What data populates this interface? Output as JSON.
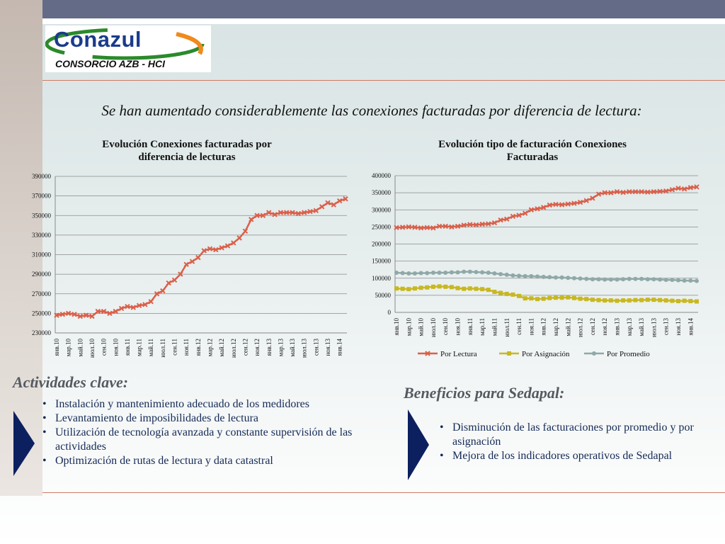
{
  "logo": {
    "name": "Conazul",
    "subtitle": "CONSORCIO AZB - HCI"
  },
  "headline": "Se han aumentado considerablemente las conexiones facturadas por diferencia de lectura:",
  "colors": {
    "top_bar": "#636b87",
    "rule": "#d07a60",
    "lectura": "#d9604a",
    "asignacion": "#c8b820",
    "promedio": "#8fa8a8",
    "list_text": "#142a55",
    "arrow": "#0c2060",
    "section_title": "#555a61"
  },
  "chart_data": [
    {
      "type": "line",
      "title": "Evolución Conexiones facturadas por diferencia de lecturas",
      "title_lines": [
        "Evolución Conexiones facturadas por",
        "diferencia de lecturas"
      ],
      "ylim": [
        230000,
        390000
      ],
      "yticks": [
        "230000",
        "250000",
        "270000",
        "290000",
        "310000",
        "330000",
        "350000",
        "370000",
        "390000"
      ],
      "xtick_labels": [
        "янв.10",
        "мар.10",
        "май.10",
        "июл.10",
        "сен.10",
        "ноя.10",
        "янв.11",
        "мар.11",
        "май.11",
        "июл.11",
        "сен.11",
        "ноя.11",
        "янв.12",
        "мар.12",
        "май.12",
        "июл.12",
        "сен.12",
        "ноя.12",
        "янв.13",
        "мар.13",
        "май.13",
        "июл.13",
        "сен.13",
        "ноя.13",
        "янв.14"
      ],
      "series": [
        {
          "values": [
            248000,
            249000,
            250000,
            249000,
            247000,
            248000,
            247000,
            252000,
            252000,
            250000,
            252000,
            255000,
            257000,
            256000,
            258000,
            259000,
            262000,
            270000,
            273000,
            281000,
            284000,
            290000,
            300000,
            303000,
            307000,
            314000,
            316000,
            315000,
            317000,
            319000,
            322000,
            327000,
            334000,
            346000,
            350000,
            350000,
            353000,
            351000,
            353000,
            353000,
            353000,
            352000,
            353000,
            354000,
            355000,
            359000,
            363000,
            361000,
            365000,
            367000
          ]
        }
      ],
      "grid": true
    },
    {
      "type": "line",
      "title": "Evolución tipo de facturación Conexiones Facturadas",
      "title_lines": [
        "Evolución tipo de facturación Conexiones",
        "Facturadas"
      ],
      "ylim": [
        0,
        400000
      ],
      "yticks": [
        "0",
        "50000",
        "100000",
        "150000",
        "200000",
        "250000",
        "300000",
        "350000",
        "400000"
      ],
      "xtick_labels": [
        "янв.10",
        "мар.10",
        "май.10",
        "июл.10",
        "сен.10",
        "ноя.10",
        "янв.11",
        "мар.11",
        "май.11",
        "июл.11",
        "сен.11",
        "ноя.11",
        "янв.12",
        "мар.12",
        "май.12",
        "июл.12",
        "сен.12",
        "ноя.12",
        "янв.13",
        "мар.13",
        "май.13",
        "июл.13",
        "сен.13",
        "ноя.13",
        "янв.14"
      ],
      "series": [
        {
          "name": "Por Lectura",
          "values": [
            248000,
            249000,
            250000,
            249000,
            247000,
            248000,
            247000,
            252000,
            252000,
            250000,
            252000,
            255000,
            257000,
            256000,
            258000,
            259000,
            262000,
            270000,
            273000,
            281000,
            284000,
            290000,
            300000,
            303000,
            307000,
            314000,
            316000,
            315000,
            317000,
            319000,
            322000,
            327000,
            334000,
            346000,
            350000,
            350000,
            353000,
            351000,
            353000,
            353000,
            353000,
            352000,
            353000,
            354000,
            355000,
            359000,
            363000,
            361000,
            365000,
            367000
          ]
        },
        {
          "name": "Por Asignación",
          "values": [
            70000,
            69000,
            68000,
            70000,
            72000,
            73000,
            75000,
            76000,
            75000,
            74000,
            71000,
            69000,
            70000,
            69000,
            68000,
            66000,
            60000,
            57000,
            54000,
            52000,
            48000,
            41000,
            41000,
            39000,
            40000,
            42000,
            43000,
            43000,
            44000,
            42000,
            40000,
            39000,
            37000,
            36000,
            35000,
            35000,
            34000,
            35000,
            35000,
            36000,
            36000,
            37000,
            37000,
            36000,
            35000,
            34000,
            33000,
            34000,
            33000,
            32000
          ]
        },
        {
          "name": "Por Promedio",
          "values": [
            116000,
            115000,
            114000,
            114000,
            115000,
            115000,
            116000,
            116000,
            116000,
            117000,
            117000,
            119000,
            119000,
            118000,
            117000,
            116000,
            114000,
            112000,
            110000,
            108000,
            107000,
            106000,
            106000,
            105000,
            104000,
            103000,
            102000,
            102000,
            101000,
            100000,
            99000,
            98000,
            97000,
            97000,
            96000,
            96000,
            96000,
            97000,
            98000,
            98000,
            98000,
            97000,
            97000,
            96000,
            95000,
            95000,
            94000,
            93000,
            93000,
            92000
          ]
        }
      ],
      "legend": "bottom",
      "grid": true
    }
  ],
  "actividades": {
    "title": "Actividades clave:",
    "items": [
      "Instalación y mantenimiento adecuado de los medidores",
      "Levantamiento de imposibilidades de lectura",
      "Utilización de tecnología avanzada y constante supervisión de las actividades",
      "Optimización de rutas de lectura y data catastral"
    ]
  },
  "beneficios": {
    "title": "Beneficios para Sedapal:",
    "items": [
      "Disminución de las facturaciones por promedio y por asignación",
      "Mejora de los indicadores operativos de Sedapal"
    ]
  },
  "bullet": "•"
}
